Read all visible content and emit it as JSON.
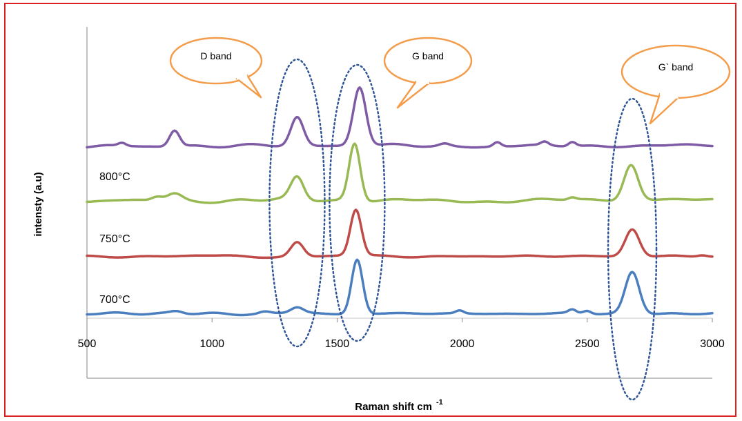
{
  "chart_data": {
    "type": "line",
    "xlabel": "Raman shift cm",
    "xlabel_superscript": "-1",
    "ylabel": "intensty (a.u)",
    "xlim": [
      500,
      3000
    ],
    "x_ticks": [
      "500",
      "1000",
      "1500",
      "2000",
      "2500",
      "3000"
    ],
    "y_ticks_shown": false,
    "grid": false,
    "legend": "none",
    "series": [
      {
        "key": "s700",
        "name": "700°C",
        "color": "#4a7ebf",
        "baseline": 0.0,
        "peaks": [
          [
            1340,
            0.2,
            25
          ],
          [
            1580,
            1.9,
            22
          ],
          [
            2680,
            1.45,
            28
          ],
          [
            2440,
            0.12,
            15
          ],
          [
            2500,
            0.1,
            15
          ],
          [
            1990,
            0.1,
            15
          ],
          [
            860,
            0.08,
            25
          ],
          [
            1210,
            0.06,
            20
          ]
        ],
        "noise_amp": 0.035,
        "seed": 7
      },
      {
        "key": "s750",
        "name": "750°C",
        "color": "#be4b48",
        "baseline": 2.0,
        "peaks": [
          [
            1340,
            0.5,
            25
          ],
          [
            1575,
            1.6,
            22
          ],
          [
            2680,
            0.95,
            28
          ],
          [
            2960,
            0.06,
            20
          ]
        ],
        "noise_amp": 0.045,
        "seed": 13
      },
      {
        "key": "s800",
        "name": "800°C",
        "color": "#98b954",
        "baseline": 3.95,
        "peaks": [
          [
            1340,
            0.75,
            25
          ],
          [
            1570,
            2.0,
            22
          ],
          [
            2675,
            1.25,
            28
          ],
          [
            850,
            0.25,
            30
          ],
          [
            780,
            0.12,
            20
          ],
          [
            2440,
            0.08,
            15
          ]
        ],
        "noise_amp": 0.06,
        "seed": 29
      },
      {
        "key": "s850",
        "name": "",
        "color": "#7e5ba4",
        "baseline": 5.85,
        "peaks": [
          [
            1340,
            1.0,
            25
          ],
          [
            1590,
            2.05,
            25
          ],
          [
            850,
            0.55,
            20
          ],
          [
            2140,
            0.15,
            15
          ],
          [
            2330,
            0.12,
            15
          ],
          [
            2440,
            0.15,
            15
          ],
          [
            640,
            0.1,
            15
          ],
          [
            1930,
            0.08,
            20
          ]
        ],
        "noise_amp": 0.045,
        "seed": 41
      }
    ],
    "ylim_hidden": [
      -0.4,
      10.0
    ],
    "annotations": [
      {
        "key": "d",
        "text": "D band",
        "center_x": 1340
      },
      {
        "key": "g",
        "text": "G band",
        "center_x": 1580
      },
      {
        "key": "g2",
        "text": "G` band",
        "center_x": 2680
      }
    ]
  },
  "style": {
    "border_color": "#e02020",
    "callout_stroke": "#f39c4a",
    "ellipse_stroke": "#2f5597",
    "axis_color": "#868686"
  }
}
